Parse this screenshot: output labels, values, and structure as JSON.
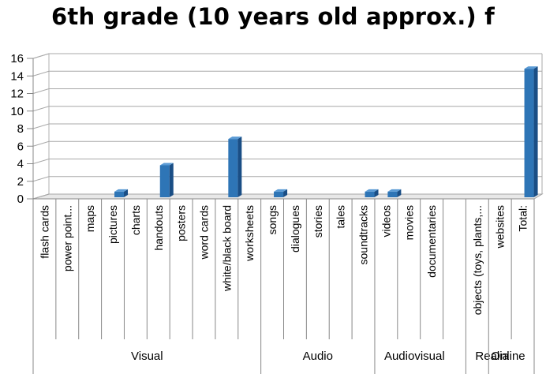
{
  "chart_data": {
    "type": "bar",
    "title": "6th grade (10 years old approx.) f",
    "xlabel": "",
    "ylabel": "",
    "ylim": [
      0,
      16
    ],
    "yticks": [
      0,
      2,
      4,
      6,
      8,
      10,
      12,
      14,
      16
    ],
    "grid": true,
    "legend": "none",
    "bar_color": "#2E75B6",
    "categories": [
      "flash cards",
      "power point...",
      "maps",
      "pictures",
      "charts",
      "handouts",
      "posters",
      "word cards",
      "white/black board",
      "worksheets",
      "songs",
      "dialogues",
      "stories",
      "tales",
      "soundtracks",
      "videos",
      "movies",
      "documentaries",
      "",
      "objects (toys, plants,...",
      "websites",
      "Total:"
    ],
    "values": [
      0,
      0,
      0,
      1,
      0,
      4,
      0,
      0,
      7,
      0,
      1,
      0,
      0,
      0,
      1,
      1,
      0,
      0,
      0,
      0,
      0,
      15
    ],
    "groups": [
      {
        "label": "Visual",
        "start": 0,
        "end": 9
      },
      {
        "label": "Audio",
        "start": 10,
        "end": 14
      },
      {
        "label": "Audiovisual",
        "start": 15,
        "end": 18
      },
      {
        "label": "Realia",
        "start": 19,
        "end": 19
      },
      {
        "label": "Online",
        "start": 20,
        "end": 21
      }
    ]
  }
}
